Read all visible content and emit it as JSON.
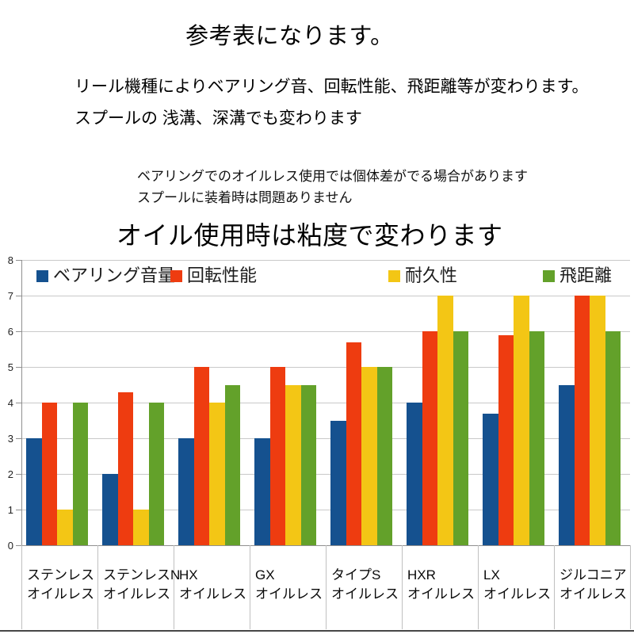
{
  "header": {
    "title": "参考表になります。",
    "line1": "リール機種によりベアリング音、回転性能、飛距離等が変わります。",
    "line2": "スプールの 浅溝、深溝でも変わります",
    "note1": "ベアリングでのオイルレス使用では個体差がでる場合があります",
    "note2": "スプールに装着時は問題ありません",
    "chart_heading": "オイル使用時は粘度で変わります"
  },
  "chart_data": {
    "type": "bar",
    "title": "オイル使用時は粘度で変わります",
    "categories": [
      "ステンレス",
      "ステンレスN",
      "HX",
      "GX",
      "タイプS",
      "HXR",
      "LX",
      "ジルコニア"
    ],
    "category_suffix": "オイルレス",
    "series": [
      {
        "name": "ベアリング音量",
        "color": "#15518f",
        "values": [
          3,
          2,
          3,
          3,
          3.5,
          4,
          3.7,
          4.5
        ]
      },
      {
        "name": "回転性能",
        "color": "#ee3c10",
        "values": [
          4,
          4.3,
          5,
          5,
          5.7,
          6,
          5.9,
          7
        ]
      },
      {
        "name": "耐久性",
        "color": "#f3c615",
        "values": [
          1,
          1,
          4,
          4.5,
          5,
          7,
          7,
          7
        ]
      },
      {
        "name": "飛距離",
        "color": "#63a12a",
        "values": [
          4,
          4,
          4.5,
          4.5,
          5,
          6,
          6,
          6
        ]
      }
    ],
    "ylim": [
      0,
      8
    ],
    "yticks": [
      0,
      1,
      2,
      3,
      4,
      5,
      6,
      7,
      8
    ],
    "grid": true,
    "legend_position": "top"
  }
}
